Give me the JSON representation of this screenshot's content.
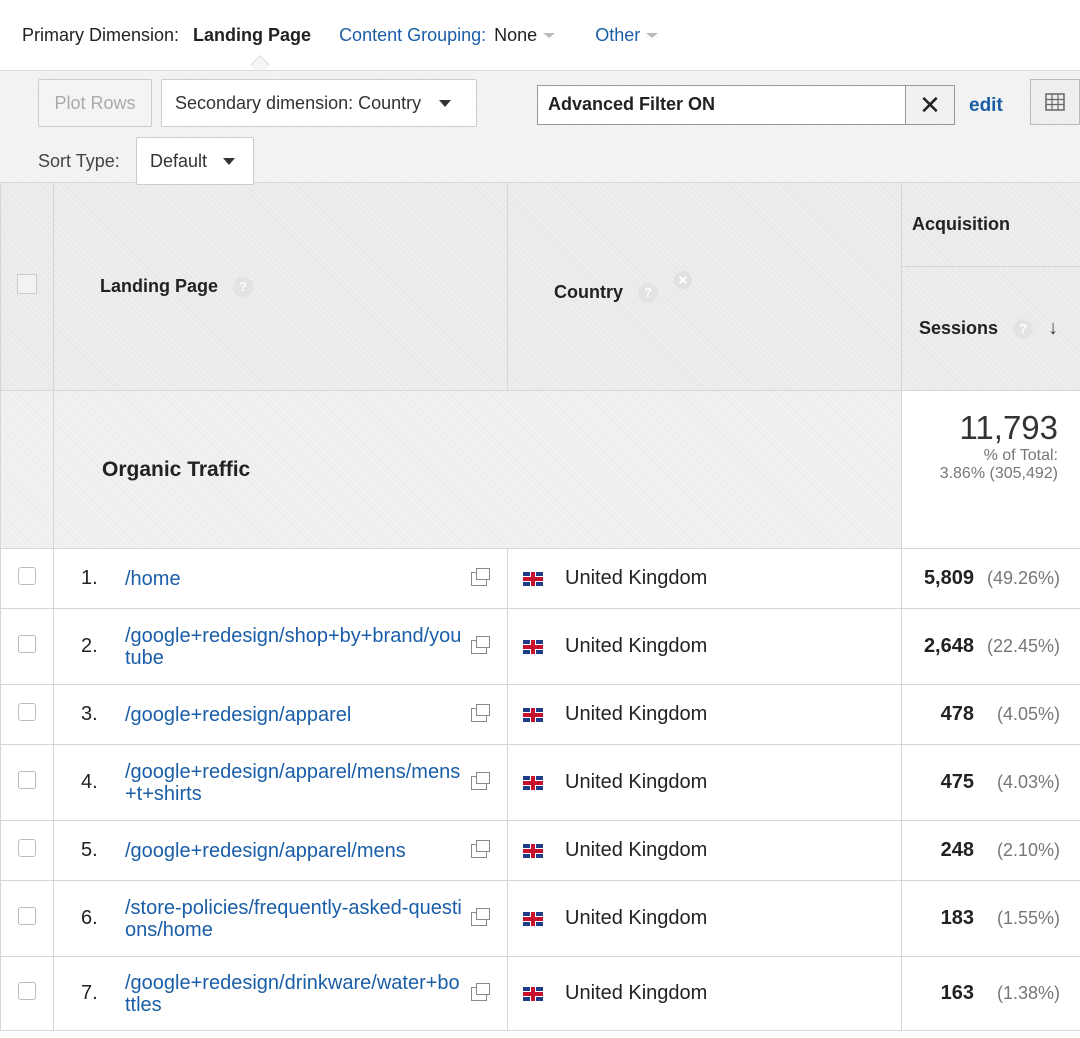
{
  "topbar": {
    "primary_label": "Primary Dimension:",
    "primary_active": "Landing Page",
    "content_grouping_label": "Content Grouping:",
    "content_grouping_value": "None",
    "other_label": "Other"
  },
  "toolbar": {
    "plot_rows": "Plot Rows",
    "secondary_dimension": "Secondary dimension: Country",
    "filter_text": "Advanced Filter ON",
    "clear_symbol": "✕",
    "edit": "edit",
    "sort_type_label": "Sort Type:",
    "sort_type_value": "Default"
  },
  "table": {
    "header": {
      "landing_page": "Landing Page",
      "country": "Country",
      "acquisition": "Acquisition",
      "sessions": "Sessions",
      "help_glyph": "?",
      "sort_arrow": "↓"
    },
    "total": {
      "label": "Organic Traffic",
      "sessions": "11,793",
      "pct_label": "% of Total:",
      "pct_value": "3.86% (305,492)"
    },
    "rows": [
      {
        "rank": "1.",
        "page": "/home",
        "country": "United Kingdom",
        "sessions": "5,809",
        "pct": "(49.26%)"
      },
      {
        "rank": "2.",
        "page": "/google+redesign/shop+by+brand/youtube",
        "country": "United Kingdom",
        "sessions": "2,648",
        "pct": "(22.45%)"
      },
      {
        "rank": "3.",
        "page": "/google+redesign/apparel",
        "country": "United Kingdom",
        "sessions": "478",
        "pct": "(4.05%)"
      },
      {
        "rank": "4.",
        "page": "/google+redesign/apparel/mens/mens+t+shirts",
        "country": "United Kingdom",
        "sessions": "475",
        "pct": "(4.03%)"
      },
      {
        "rank": "5.",
        "page": "/google+redesign/apparel/mens",
        "country": "United Kingdom",
        "sessions": "248",
        "pct": "(2.10%)"
      },
      {
        "rank": "6.",
        "page": "/store-policies/frequently-asked-questions/home",
        "country": "United Kingdom",
        "sessions": "183",
        "pct": "(1.55%)"
      },
      {
        "rank": "7.",
        "page": "/google+redesign/drinkware/water+bottles",
        "country": "United Kingdom",
        "sessions": "163",
        "pct": "(1.38%)"
      }
    ]
  },
  "colors": {
    "link": "#1a5ea8",
    "header_bg": "#eeeeee"
  }
}
